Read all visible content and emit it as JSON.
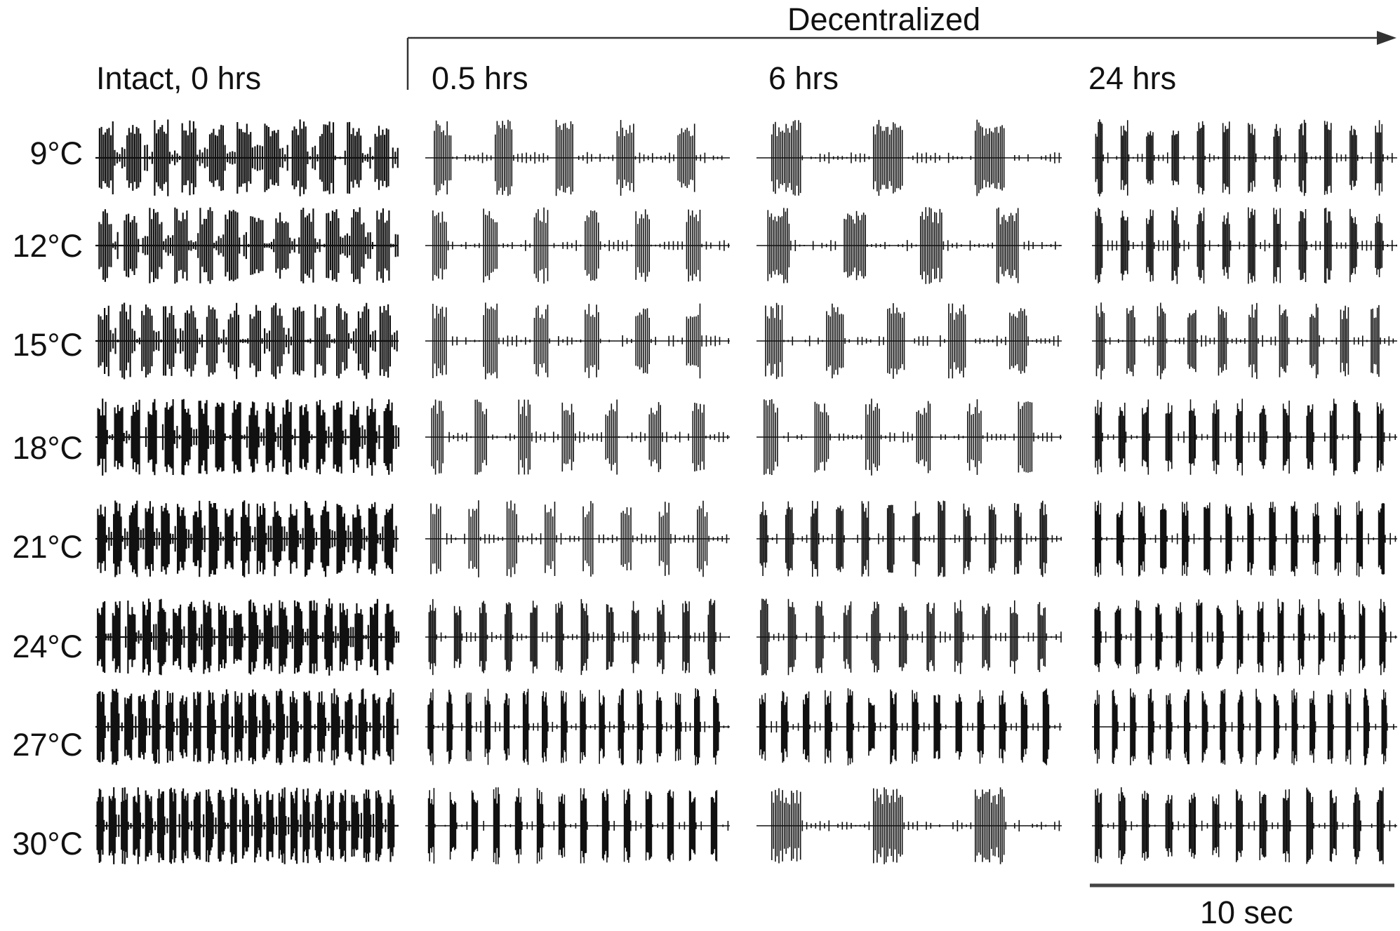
{
  "decentralized_label": "Decentralized",
  "columns": [
    {
      "title": "Intact, 0 hrs"
    },
    {
      "title": "0.5 hrs"
    },
    {
      "title": "6 hrs"
    },
    {
      "title": "24 hrs"
    }
  ],
  "rows": [
    {
      "label": "9°C"
    },
    {
      "label": "12°C"
    },
    {
      "label": "15°C"
    },
    {
      "label": "18°C"
    },
    {
      "label": "21°C"
    },
    {
      "label": "24°C"
    },
    {
      "label": "27°C"
    },
    {
      "label": "30°C"
    }
  ],
  "scale_bar": {
    "label": "10 sec"
  },
  "colors": {
    "trace": "#111111",
    "arrow": "#333333"
  }
}
